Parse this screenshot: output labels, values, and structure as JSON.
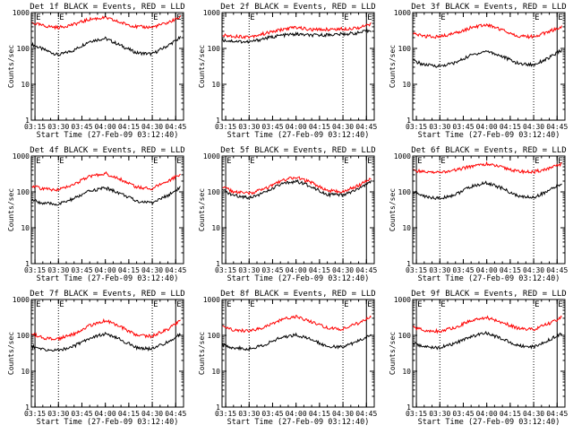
{
  "figure": {
    "shared_xlabel": "Start Time (27-Feb-09 03:12:40)",
    "shared_ylabel": "Counts/sec",
    "x_ticks": [
      "03:15",
      "03:30",
      "03:45",
      "04:00",
      "04:15",
      "04:30",
      "04:45"
    ],
    "y_ticks": [
      "1",
      "10",
      "100",
      "1000"
    ],
    "marker_label": "E",
    "colors": {
      "events": "#000000",
      "lld": "#ff0000",
      "axes": "#000000",
      "background": "#ffffff"
    }
  },
  "chart_data": [
    {
      "type": "line",
      "title": "Det 1f BLACK = Events, RED = LLD",
      "xlabel": "Start Time (27-Feb-09 03:12:40)",
      "ylabel": "Counts/sec",
      "x_range": [
        "03:12:40",
        "04:50"
      ],
      "y_scale": "log",
      "ylim": [
        1,
        1000
      ],
      "markers": [
        {
          "time": "03:15"
        },
        {
          "time": "03:30",
          "dotted": true
        },
        {
          "time": "04:30",
          "dotted": true
        },
        {
          "time": "04:45"
        }
      ],
      "series": [
        {
          "color": "#000000",
          "times": [
            "03:13",
            "03:20",
            "03:30",
            "03:40",
            "03:50",
            "04:00",
            "04:10",
            "04:20",
            "04:30",
            "04:40",
            "04:48"
          ],
          "values": [
            130,
            95,
            65,
            90,
            160,
            190,
            120,
            75,
            70,
            120,
            200
          ]
        },
        {
          "color": "#ff0000",
          "times": [
            "03:13",
            "03:20",
            "03:30",
            "03:40",
            "03:50",
            "04:00",
            "04:10",
            "04:20",
            "04:30",
            "04:40",
            "04:48"
          ],
          "values": [
            520,
            430,
            380,
            470,
            650,
            720,
            520,
            400,
            390,
            520,
            750
          ]
        }
      ]
    },
    {
      "type": "line",
      "title": "Det 2f BLACK = Events, RED = LLD",
      "xlabel": "Start Time (27-Feb-09 03:12:40)",
      "ylabel": "Counts/sec",
      "x_range": [
        "03:12:40",
        "04:50"
      ],
      "y_scale": "log",
      "ylim": [
        1,
        1000
      ],
      "markers": [
        {
          "time": "03:30",
          "dotted": true
        },
        {
          "time": "04:30",
          "dotted": true
        },
        {
          "time": "04:45"
        }
      ],
      "series": [
        {
          "color": "#000000",
          "times": [
            "03:13",
            "03:20",
            "03:30",
            "03:40",
            "03:50",
            "04:00",
            "04:10",
            "04:20",
            "04:30",
            "04:40",
            "04:48"
          ],
          "values": [
            170,
            160,
            150,
            190,
            230,
            250,
            230,
            240,
            250,
            270,
            320
          ]
        },
        {
          "color": "#ff0000",
          "times": [
            "03:13",
            "03:20",
            "03:30",
            "03:40",
            "03:50",
            "04:00",
            "04:10",
            "04:20",
            "04:30",
            "04:40",
            "04:48"
          ],
          "values": [
            230,
            220,
            210,
            260,
            330,
            390,
            330,
            340,
            350,
            380,
            470
          ]
        }
      ]
    },
    {
      "type": "line",
      "title": "Det 3f BLACK = Events, RED = LLD",
      "xlabel": "Start Time (27-Feb-09 03:12:40)",
      "ylabel": "Counts/sec",
      "x_range": [
        "03:12:40",
        "04:50"
      ],
      "y_scale": "log",
      "ylim": [
        1,
        1000
      ],
      "markers": [
        {
          "time": "03:30",
          "dotted": true
        },
        {
          "time": "04:30",
          "dotted": true
        },
        {
          "time": "04:45"
        }
      ],
      "series": [
        {
          "color": "#000000",
          "times": [
            "03:13",
            "03:20",
            "03:30",
            "03:40",
            "03:50",
            "04:00",
            "04:10",
            "04:20",
            "04:30",
            "04:40",
            "04:48"
          ],
          "values": [
            45,
            35,
            32,
            40,
            65,
            85,
            60,
            38,
            35,
            55,
            90
          ]
        },
        {
          "color": "#ff0000",
          "times": [
            "03:13",
            "03:20",
            "03:30",
            "03:40",
            "03:50",
            "04:00",
            "04:10",
            "04:20",
            "04:30",
            "04:40",
            "04:48"
          ],
          "values": [
            250,
            220,
            210,
            270,
            380,
            460,
            330,
            220,
            210,
            300,
            400
          ]
        }
      ]
    },
    {
      "type": "line",
      "title": "Det 4f BLACK = Events, RED = LLD",
      "xlabel": "Start Time (27-Feb-09 03:12:40)",
      "ylabel": "Counts/sec",
      "x_range": [
        "03:12:40",
        "04:50"
      ],
      "y_scale": "log",
      "ylim": [
        1,
        1000
      ],
      "markers": [
        {
          "time": "03:15"
        },
        {
          "time": "03:30",
          "dotted": true
        },
        {
          "time": "04:30",
          "dotted": true
        },
        {
          "time": "04:45"
        }
      ],
      "series": [
        {
          "color": "#000000",
          "times": [
            "03:13",
            "03:20",
            "03:30",
            "03:40",
            "03:50",
            "04:00",
            "04:10",
            "04:20",
            "04:30",
            "04:40",
            "04:48"
          ],
          "values": [
            60,
            48,
            45,
            65,
            105,
            130,
            90,
            55,
            50,
            80,
            135
          ]
        },
        {
          "color": "#ff0000",
          "times": [
            "03:13",
            "03:20",
            "03:30",
            "03:40",
            "03:50",
            "04:00",
            "04:10",
            "04:20",
            "04:30",
            "04:40",
            "04:48"
          ],
          "values": [
            150,
            120,
            115,
            165,
            270,
            330,
            220,
            135,
            125,
            200,
            320
          ]
        }
      ]
    },
    {
      "type": "line",
      "title": "Det 5f BLACK = Events, RED = LLD",
      "xlabel": "Start Time (27-Feb-09 03:12:40)",
      "ylabel": "Counts/sec",
      "x_range": [
        "03:12:40",
        "04:50"
      ],
      "y_scale": "log",
      "ylim": [
        1,
        1000
      ],
      "markers": [
        {
          "time": "03:15"
        },
        {
          "time": "03:30",
          "dotted": true
        },
        {
          "time": "04:30",
          "dotted": true
        },
        {
          "time": "04:45"
        }
      ],
      "series": [
        {
          "color": "#000000",
          "times": [
            "03:13",
            "03:20",
            "03:30",
            "03:40",
            "03:50",
            "04:00",
            "04:10",
            "04:20",
            "04:30",
            "04:40",
            "04:48"
          ],
          "values": [
            110,
            80,
            70,
            95,
            160,
            200,
            140,
            85,
            80,
            120,
            190
          ]
        },
        {
          "color": "#ff0000",
          "times": [
            "03:13",
            "03:20",
            "03:30",
            "03:40",
            "03:50",
            "04:00",
            "04:10",
            "04:20",
            "04:30",
            "04:40",
            "04:48"
          ],
          "values": [
            140,
            100,
            90,
            120,
            200,
            260,
            180,
            110,
            100,
            150,
            240
          ]
        }
      ]
    },
    {
      "type": "line",
      "title": "Det 6f BLACK = Events, RED = LLD",
      "xlabel": "Start Time (27-Feb-09 03:12:40)",
      "ylabel": "Counts/sec",
      "x_range": [
        "03:12:40",
        "04:50"
      ],
      "y_scale": "log",
      "ylim": [
        1,
        1000
      ],
      "markers": [
        {
          "time": "03:15"
        },
        {
          "time": "03:30",
          "dotted": true
        },
        {
          "time": "04:30",
          "dotted": true
        },
        {
          "time": "04:45"
        }
      ],
      "series": [
        {
          "color": "#000000",
          "times": [
            "03:13",
            "03:20",
            "03:30",
            "03:40",
            "03:50",
            "04:00",
            "04:10",
            "04:20",
            "04:30",
            "04:40",
            "04:48"
          ],
          "values": [
            100,
            75,
            65,
            85,
            140,
            180,
            125,
            75,
            70,
            110,
            170
          ]
        },
        {
          "color": "#ff0000",
          "times": [
            "03:13",
            "03:20",
            "03:30",
            "03:40",
            "03:50",
            "04:00",
            "04:10",
            "04:20",
            "04:30",
            "04:40",
            "04:48"
          ],
          "values": [
            400,
            360,
            350,
            400,
            520,
            600,
            480,
            370,
            360,
            450,
            600
          ]
        }
      ]
    },
    {
      "type": "line",
      "title": "Det 7f BLACK = Events, RED = LLD",
      "xlabel": "Start Time (27-Feb-09 03:12:40)",
      "ylabel": "Counts/sec",
      "x_range": [
        "03:12:40",
        "04:50"
      ],
      "y_scale": "log",
      "ylim": [
        1,
        1000
      ],
      "markers": [
        {
          "time": "03:15"
        },
        {
          "time": "03:30",
          "dotted": true
        },
        {
          "time": "04:30",
          "dotted": true
        },
        {
          "time": "04:45"
        }
      ],
      "series": [
        {
          "color": "#000000",
          "times": [
            "03:13",
            "03:20",
            "03:30",
            "03:40",
            "03:50",
            "04:00",
            "04:10",
            "04:20",
            "04:30",
            "04:40",
            "04:48"
          ],
          "values": [
            50,
            40,
            38,
            50,
            85,
            110,
            75,
            45,
            42,
            65,
            110
          ]
        },
        {
          "color": "#ff0000",
          "times": [
            "03:13",
            "03:20",
            "03:30",
            "03:40",
            "03:50",
            "04:00",
            "04:10",
            "04:20",
            "04:30",
            "04:40",
            "04:48"
          ],
          "values": [
            110,
            85,
            80,
            110,
            190,
            260,
            170,
            100,
            95,
            150,
            260
          ]
        }
      ]
    },
    {
      "type": "line",
      "title": "Det 8f BLACK = Events, RED = LLD",
      "xlabel": "Start Time (27-Feb-09 03:12:40)",
      "ylabel": "Counts/sec",
      "x_range": [
        "03:12:40",
        "04:50"
      ],
      "y_scale": "log",
      "ylim": [
        1,
        1000
      ],
      "markers": [
        {
          "time": "03:15"
        },
        {
          "time": "03:30",
          "dotted": true
        },
        {
          "time": "04:30",
          "dotted": true
        },
        {
          "time": "04:45"
        }
      ],
      "series": [
        {
          "color": "#000000",
          "times": [
            "03:13",
            "03:20",
            "03:30",
            "03:40",
            "03:50",
            "04:00",
            "04:10",
            "04:20",
            "04:30",
            "04:40",
            "04:48"
          ],
          "values": [
            55,
            45,
            42,
            55,
            85,
            105,
            75,
            50,
            47,
            70,
            105
          ]
        },
        {
          "color": "#ff0000",
          "times": [
            "03:13",
            "03:20",
            "03:30",
            "03:40",
            "03:50",
            "04:00",
            "04:10",
            "04:20",
            "04:30",
            "04:40",
            "04:48"
          ],
          "values": [
            170,
            140,
            130,
            170,
            270,
            330,
            240,
            160,
            150,
            220,
            330
          ]
        }
      ]
    },
    {
      "type": "line",
      "title": "Det 9f BLACK = Events, RED = LLD",
      "xlabel": "Start Time (27-Feb-09 03:12:40)",
      "ylabel": "Counts/sec",
      "x_range": [
        "03:12:40",
        "04:50"
      ],
      "y_scale": "log",
      "ylim": [
        1,
        1000
      ],
      "markers": [
        {
          "time": "03:15"
        },
        {
          "time": "03:30",
          "dotted": true
        },
        {
          "time": "04:30",
          "dotted": true
        },
        {
          "time": "04:45"
        }
      ],
      "series": [
        {
          "color": "#000000",
          "times": [
            "03:13",
            "03:20",
            "03:30",
            "03:40",
            "03:50",
            "04:00",
            "04:10",
            "04:20",
            "04:30",
            "04:40",
            "04:48"
          ],
          "values": [
            60,
            48,
            45,
            60,
            95,
            115,
            80,
            52,
            48,
            75,
            115
          ]
        },
        {
          "color": "#ff0000",
          "times": [
            "03:13",
            "03:20",
            "03:30",
            "03:40",
            "03:50",
            "04:00",
            "04:10",
            "04:20",
            "04:30",
            "04:40",
            "04:48"
          ],
          "values": [
            170,
            140,
            130,
            170,
            260,
            310,
            230,
            155,
            145,
            215,
            320
          ]
        }
      ]
    }
  ]
}
